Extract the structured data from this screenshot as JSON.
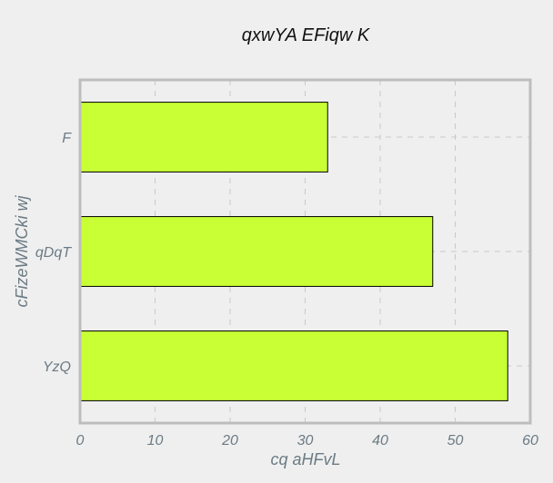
{
  "chart_data": {
    "type": "bar",
    "orientation": "horizontal",
    "title": "qxwYA EFiqw K",
    "xlabel": "cq aHFvL",
    "ylabel": "cFizeWMCki wj",
    "categories": [
      "F",
      "qDqT",
      "YzQ"
    ],
    "values": [
      33,
      47,
      57
    ],
    "xlim": [
      0,
      60
    ],
    "xticks": [
      0,
      10,
      20,
      30,
      40,
      50,
      60
    ],
    "grid": true,
    "bar_color": "#c8ff35",
    "bar_edge_color": "#000000"
  }
}
